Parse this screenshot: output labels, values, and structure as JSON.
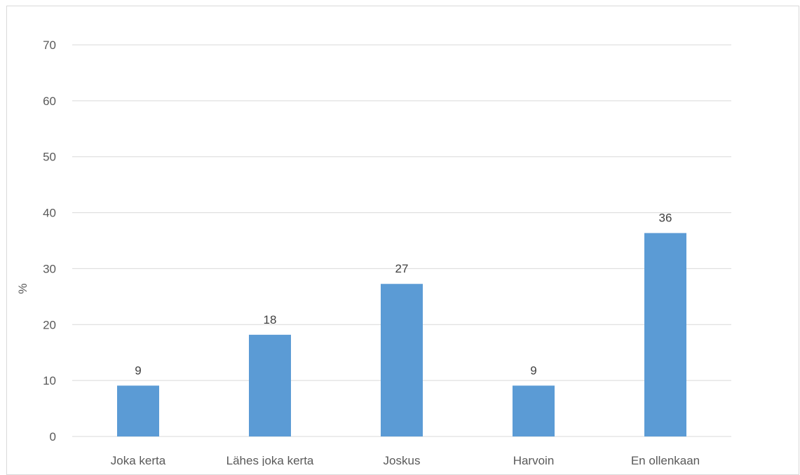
{
  "chart_data": {
    "type": "bar",
    "title": "",
    "xlabel": "",
    "ylabel": "%",
    "ylim": [
      0,
      70
    ],
    "y_ticks": [
      0,
      10,
      20,
      30,
      40,
      50,
      60,
      70
    ],
    "grid": true,
    "legend": "none",
    "categories": [
      "Joka kerta",
      "Lähes joka kerta",
      "Joskus",
      "Harvoin",
      "En ollenkaan"
    ],
    "values": [
      9,
      18,
      27,
      9,
      36
    ],
    "data_labels": [
      "9",
      "18",
      "27",
      "9",
      "36"
    ],
    "values_precise": [
      9.09,
      18.18,
      27.27,
      9.09,
      36.36
    ],
    "bar_color": "#5b9bd5",
    "gridline_color": "#d9d9d9",
    "text_color": "#595959"
  }
}
